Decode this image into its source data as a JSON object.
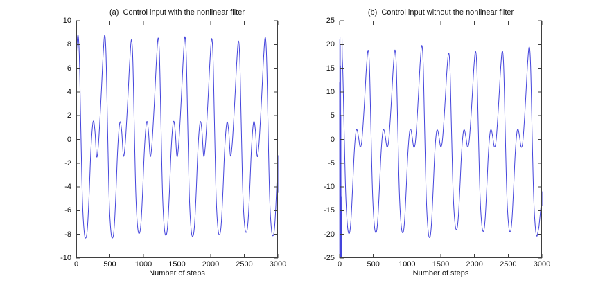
{
  "figure": {
    "background": "#ffffff",
    "frame_color": "#3f3f3f",
    "text_color": "#111111"
  },
  "chart_data": [
    {
      "id": "a",
      "type": "line",
      "title": "(a)  Control input with the nonlinear filter",
      "xlabel": "Number of steps",
      "ylabel": "",
      "xlim": [
        0,
        3000
      ],
      "ylim": [
        -10,
        10
      ],
      "xticks": [
        0,
        500,
        1000,
        1500,
        2000,
        2500,
        3000
      ],
      "yticks": [
        -10,
        -8,
        -6,
        -4,
        -2,
        0,
        2,
        4,
        6,
        8,
        10
      ],
      "grid": false,
      "box": true,
      "legend": null,
      "line_color": "#4444DC",
      "series_name": "control input with nonlinear filter",
      "signal_model": {
        "kind": "periodic",
        "period_steps": 398,
        "first_peak_step": 25,
        "base_peak": 8.8,
        "cycle_peak_values": [
          8.8,
          8.8,
          8.4,
          8.55,
          8.65,
          8.5,
          8.3,
          8.6
        ],
        "shape_phase_rel": [
          [
            0.0,
            1.0
          ],
          [
            0.05,
            0.82
          ],
          [
            0.105,
            0.15
          ],
          [
            0.165,
            -0.55
          ],
          [
            0.235,
            -0.885
          ],
          [
            0.305,
            -0.94
          ],
          [
            0.36,
            -0.83
          ],
          [
            0.42,
            -0.52
          ],
          [
            0.48,
            -0.13
          ],
          [
            0.54,
            0.115
          ],
          [
            0.587,
            0.176
          ],
          [
            0.64,
            0.07
          ],
          [
            0.7,
            -0.165
          ],
          [
            0.76,
            -0.07
          ],
          [
            0.82,
            0.18
          ],
          [
            0.88,
            0.48
          ],
          [
            0.94,
            0.8
          ],
          [
            1.0,
            1.0
          ]
        ],
        "periodic_until": 3000,
        "end_mark": {
          "x": 3000,
          "y_from": -1.5,
          "y_to": -4.5
        }
      },
      "key_features": {
        "start_value": 6.4,
        "big_peaks_approx": [
          8.8,
          8.8,
          8.4,
          8.55,
          8.65,
          8.5,
          8.3,
          8.6
        ],
        "big_troughs_approx": [
          -8.2,
          -8.4,
          -8.25,
          -8.3,
          -8.2,
          -8.35,
          -8.4,
          -8.3
        ],
        "small_peak_approx": 1.55,
        "small_dip_approx": -1.45
      }
    },
    {
      "id": "b",
      "type": "line",
      "title": "(b)  Control input without the nonlinear filter",
      "xlabel": "Number of steps",
      "ylabel": "",
      "xlim": [
        0,
        3000
      ],
      "ylim": [
        -25,
        25
      ],
      "xticks": [
        0,
        500,
        1000,
        1500,
        2000,
        2500,
        3000
      ],
      "yticks": [
        -25,
        -20,
        -15,
        -10,
        -5,
        0,
        5,
        10,
        15,
        20,
        25
      ],
      "grid": false,
      "box": true,
      "legend": null,
      "line_color": "#4444DC",
      "series_name": "control input without nonlinear filter",
      "signal_model": {
        "kind": "periodic-with-transient",
        "period_steps": 398,
        "first_peak_step": 25,
        "base_peak": 19.8,
        "cycle_peak_values": [
          19.0,
          18.8,
          18.85,
          19.8,
          18.2,
          18.55,
          18.65,
          19.5
        ],
        "shape_phase_rel": [
          [
            0.0,
            1.0
          ],
          [
            0.05,
            0.82
          ],
          [
            0.105,
            0.12
          ],
          [
            0.165,
            -0.6
          ],
          [
            0.235,
            -0.97
          ],
          [
            0.305,
            -1.04
          ],
          [
            0.36,
            -0.9
          ],
          [
            0.42,
            -0.55
          ],
          [
            0.48,
            -0.16
          ],
          [
            0.54,
            0.07
          ],
          [
            0.587,
            0.108
          ],
          [
            0.64,
            0.03
          ],
          [
            0.7,
            -0.082
          ],
          [
            0.76,
            -0.03
          ],
          [
            0.82,
            0.2
          ],
          [
            0.88,
            0.5
          ],
          [
            0.94,
            0.82
          ],
          [
            1.0,
            1.0
          ]
        ],
        "transient_points": [
          [
            0,
            12
          ],
          [
            1.5,
            -26
          ],
          [
            3,
            21
          ],
          [
            4.5,
            -26
          ],
          [
            6,
            21.5
          ],
          [
            8,
            -26
          ],
          [
            10,
            20
          ],
          [
            12,
            -26
          ],
          [
            14,
            15.5
          ],
          [
            16,
            -26
          ],
          [
            18,
            5
          ],
          [
            20,
            -26
          ],
          [
            22,
            -12
          ],
          [
            24,
            -26
          ],
          [
            26,
            -15
          ],
          [
            28,
            -26
          ],
          [
            30,
            -17
          ],
          [
            32,
            -21
          ],
          [
            34,
            -10
          ],
          [
            36,
            21.5
          ]
        ],
        "periodic_until": 2930,
        "end_override_points": [
          [
            2955,
            -18.5
          ],
          [
            2980,
            -15.0
          ],
          [
            3000,
            -11.5
          ]
        ],
        "end_mark": {
          "x": 3000,
          "y_from": -11.0,
          "y_to": -14.0
        }
      },
      "key_features": {
        "initial_transient": {
          "t_range": [
            0,
            40
          ],
          "value_span": [
            -25,
            21.5
          ]
        },
        "big_peaks_approx": [
          21.5,
          18.8,
          18.85,
          19.8,
          18.2,
          18.55,
          18.65,
          19.5
        ],
        "big_troughs_approx": [
          -19.0,
          -20.4,
          -19.3,
          -21.4,
          -19.1,
          -20.7,
          -19.0,
          -20.3
        ],
        "small_peak_approx": 2.1,
        "small_dip_approx": -1.6
      }
    }
  ]
}
